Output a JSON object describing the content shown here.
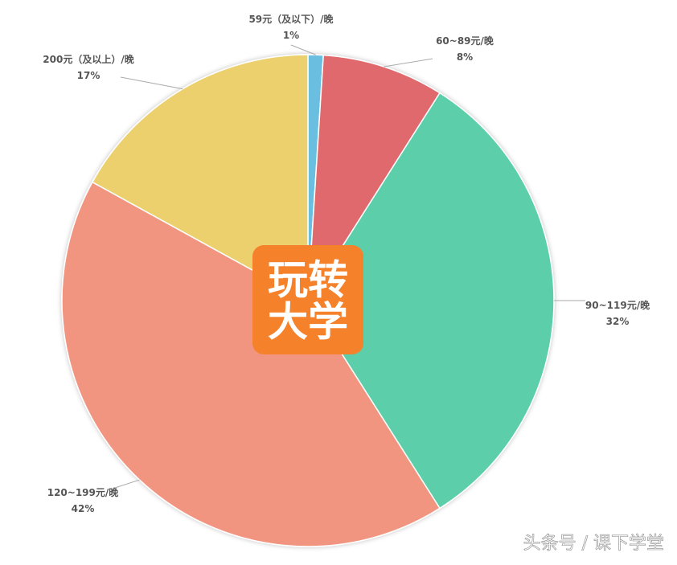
{
  "chart_data": {
    "type": "pie",
    "categories": [
      "59元（及以下）/晚",
      "60~89元/晚",
      "90~119元/晚",
      "120~199元/晚",
      "200元（及以上）/晚"
    ],
    "values": [
      1,
      8,
      32,
      42,
      17
    ],
    "value_labels": [
      "1%",
      "8%",
      "32%",
      "42%",
      "17%"
    ],
    "colors": [
      "#6bbfe0",
      "#e0696e",
      "#5ccfaa",
      "#f29580",
      "#ecd06e"
    ]
  },
  "logo": [
    "玩转",
    "大学"
  ],
  "watermark": "头条号 / 课下学堂"
}
